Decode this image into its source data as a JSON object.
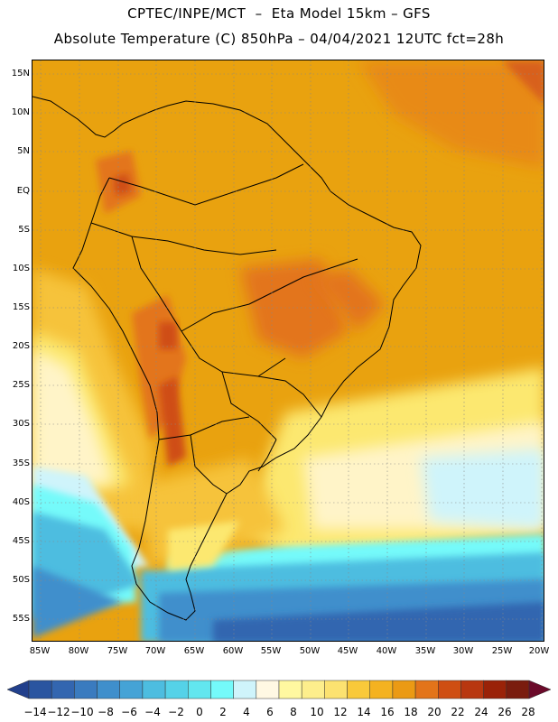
{
  "title_line1": "CPTEC/INPE/MCT  –  Eta Model 15km – GFS",
  "title_line2": "Absolute Temperature (C) 850hPa – 04/04/2021 12UTC fct=28h",
  "lat_labels": [
    "15N",
    "10N",
    "5N",
    "EQ",
    "5S",
    "10S",
    "15S",
    "20S",
    "25S",
    "30S",
    "35S",
    "40S",
    "45S",
    "50S",
    "55S"
  ],
  "lon_labels": [
    "85W",
    "80W",
    "75W",
    "70W",
    "65W",
    "60W",
    "55W",
    "50W",
    "45W",
    "40W",
    "35W",
    "30W",
    "25W",
    "20W"
  ],
  "colorbar": {
    "labels": [
      "−14",
      "−12",
      "−10",
      "−8",
      "−6",
      "−4",
      "−2",
      "0",
      "2",
      "4",
      "6",
      "8",
      "10",
      "12",
      "14",
      "16",
      "18",
      "20",
      "22",
      "24",
      "26",
      "28"
    ],
    "colors": [
      "#22408c",
      "#2a55a0",
      "#3366b0",
      "#3a7bbf",
      "#3f8fcc",
      "#45a3d6",
      "#4dbde0",
      "#55d2e8",
      "#62e6ef",
      "#74fafa",
      "#cff4fb",
      "#fff8e3",
      "#fff8a0",
      "#fdee8c",
      "#fce270",
      "#f9c93a",
      "#f4b220",
      "#eb9a14",
      "#e3741a",
      "#cf4e12",
      "#b83710",
      "#9a2208",
      "#7a1c0e",
      "#6b0a2a"
    ]
  }
}
